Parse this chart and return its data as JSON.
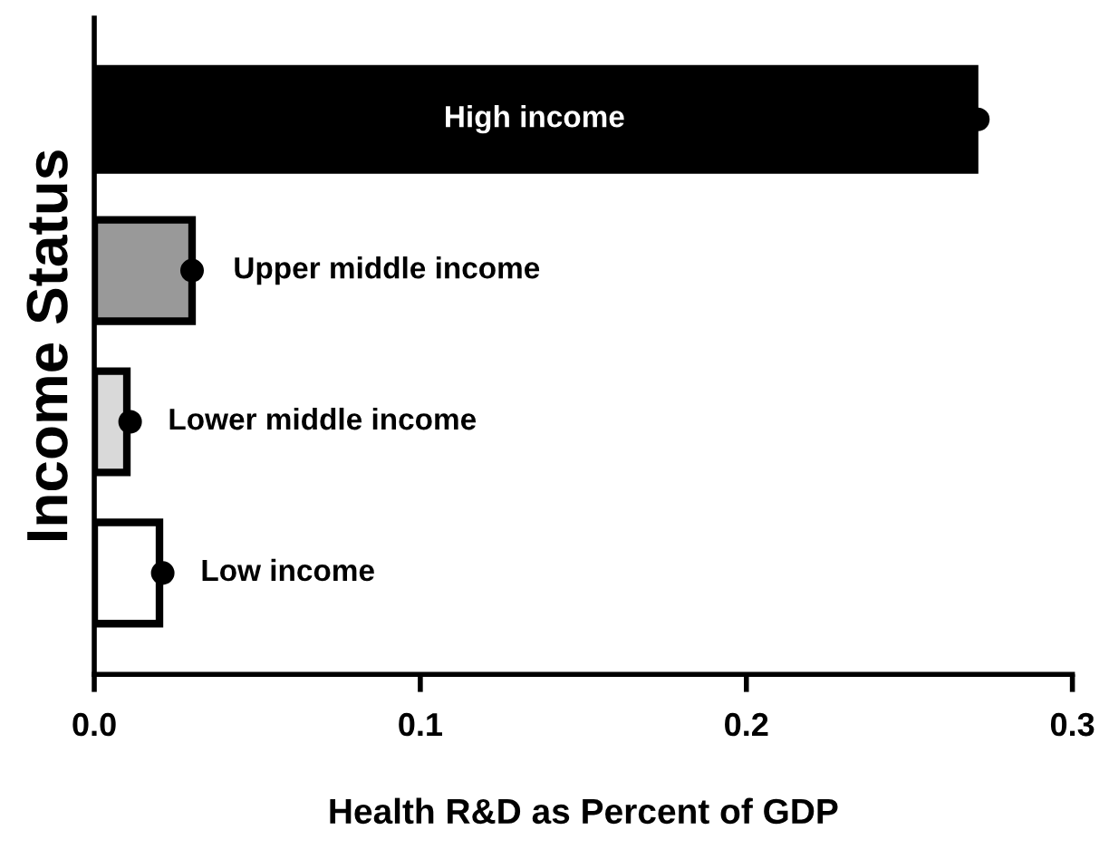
{
  "chart_data": {
    "type": "bar",
    "orientation": "horizontal",
    "categories": [
      "High income",
      "Upper middle income",
      "Lower middle income",
      "Low income"
    ],
    "series": [
      {
        "colors": [
          "#000000",
          "#999999",
          "#d9d9d9",
          "#ffffff"
        ],
        "values": [
          0.27,
          0.03,
          0.01,
          0.02
        ]
      },
      {
        "type": "scatter",
        "color": "#000000",
        "x": [
          "High income",
          "Upper middle income",
          "Lower middle income",
          "Low income"
        ],
        "values": [
          0.271,
          0.03,
          0.011,
          0.021
        ]
      }
    ],
    "xlabel": "Health R&D as Percent of GDP",
    "ylabel": "Income Status",
    "xlim": [
      0,
      0.3
    ],
    "xticks": [
      {
        "value": 0,
        "label": "0.0"
      },
      0.1,
      0.2,
      0.3
    ],
    "grid": false,
    "marker": "circle"
  }
}
